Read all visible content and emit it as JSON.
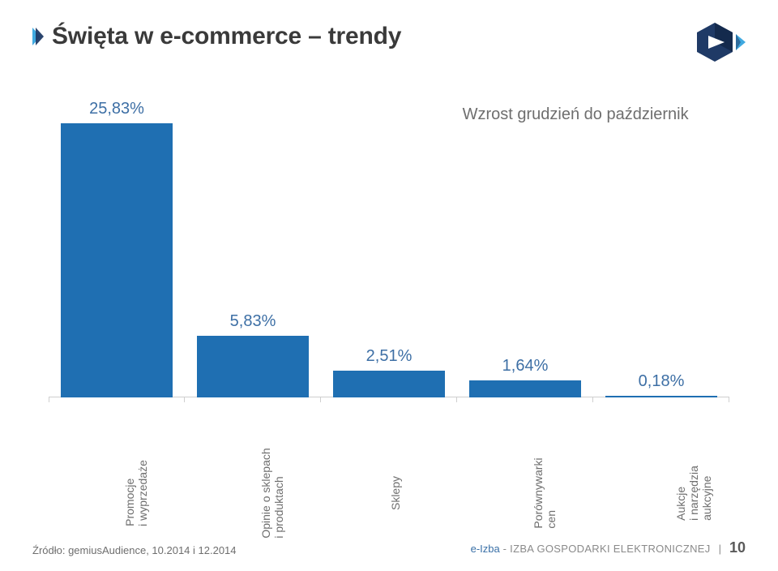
{
  "title": "Święta w e-commerce – trendy",
  "legend_note": "Wzrost grudzień do październik",
  "chart": {
    "type": "bar",
    "categories": [
      {
        "label_lines": [
          "Promocje",
          "i wyprzedaże"
        ]
      },
      {
        "label_lines": [
          "Opinie o sklepach",
          "i produktach"
        ]
      },
      {
        "label_lines": [
          "Sklepy"
        ]
      },
      {
        "label_lines": [
          "Porównywarki",
          "cen"
        ]
      },
      {
        "label_lines": [
          "Aukcje",
          "i narzędzia",
          "aukcyjne"
        ]
      }
    ],
    "values": [
      25.83,
      5.83,
      2.51,
      1.64,
      0.18
    ],
    "value_labels": [
      "25,83%",
      "5,83%",
      "2,51%",
      "1,64%",
      "0,18%"
    ],
    "bar_color": "#1f6fb2",
    "value_label_color": "#3d6fa5",
    "value_label_fontsize": 20,
    "xlabel_color": "#6e6e6e",
    "xlabel_fontsize": 14,
    "ylim": [
      0,
      27.5
    ],
    "bar_width_ratio": 0.82,
    "baseline_color": "#cfcfcf",
    "background_color": "#ffffff"
  },
  "logo": {
    "primary_color": "#1f3a66",
    "accent_color": "#3fa9e0"
  },
  "footer": {
    "source": "Źródło: gemiusAudience, 10.2014 i 12.2014",
    "brand_prefix": "e-Izba",
    "brand_suffix": " - IZBA GOSPODARKI ELEKTRONICZNEJ",
    "page_number": "10"
  }
}
